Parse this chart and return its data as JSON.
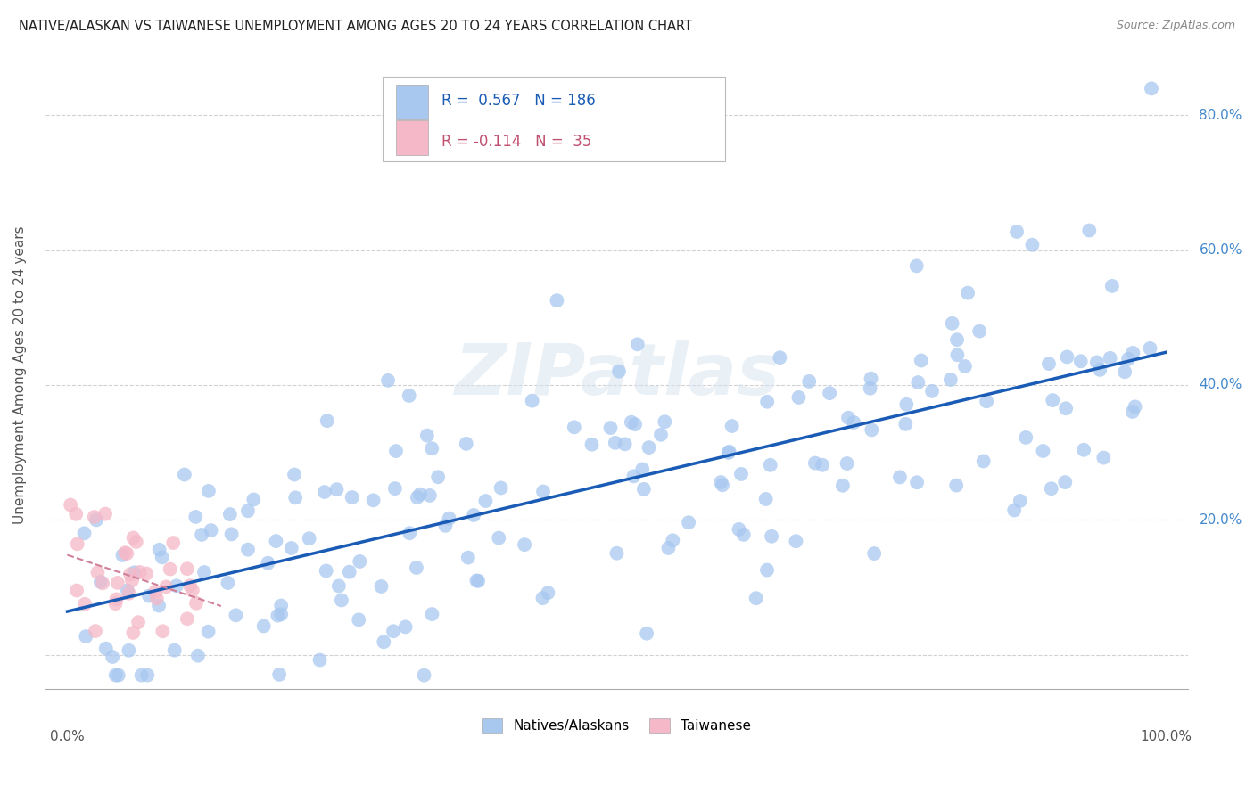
{
  "title": "NATIVE/ALASKAN VS TAIWANESE UNEMPLOYMENT AMONG AGES 20 TO 24 YEARS CORRELATION CHART",
  "source": "Source: ZipAtlas.com",
  "ylabel": "Unemployment Among Ages 20 to 24 years",
  "xlim": [
    -0.02,
    1.02
  ],
  "ylim": [
    -0.05,
    0.88
  ],
  "yticks": [
    0.0,
    0.2,
    0.4,
    0.6,
    0.8
  ],
  "yticklabels_right": [
    "",
    "20.0%",
    "40.0%",
    "60.0%",
    "80.0%"
  ],
  "x_left_label": "0.0%",
  "x_right_label": "100.0%",
  "legend_labels": [
    "Natives/Alaskans",
    "Taiwanese"
  ],
  "blue_R": "0.567",
  "blue_N": "186",
  "pink_R": "-0.114",
  "pink_N": "35",
  "blue_color": "#a8c8f0",
  "pink_color": "#f5b8c8",
  "trend_blue": "#1a5cb5",
  "trend_pink": "#d08098",
  "watermark": "ZIPatlas",
  "background_color": "#ffffff",
  "grid_color": "#cccccc",
  "seed_blue": 42,
  "seed_pink": 7,
  "n_blue": 186,
  "n_pink": 35,
  "legend_box_color": "#bbbbbb",
  "legend_text_blue": "#1a5cb5",
  "legend_text_pink": "#c05070"
}
